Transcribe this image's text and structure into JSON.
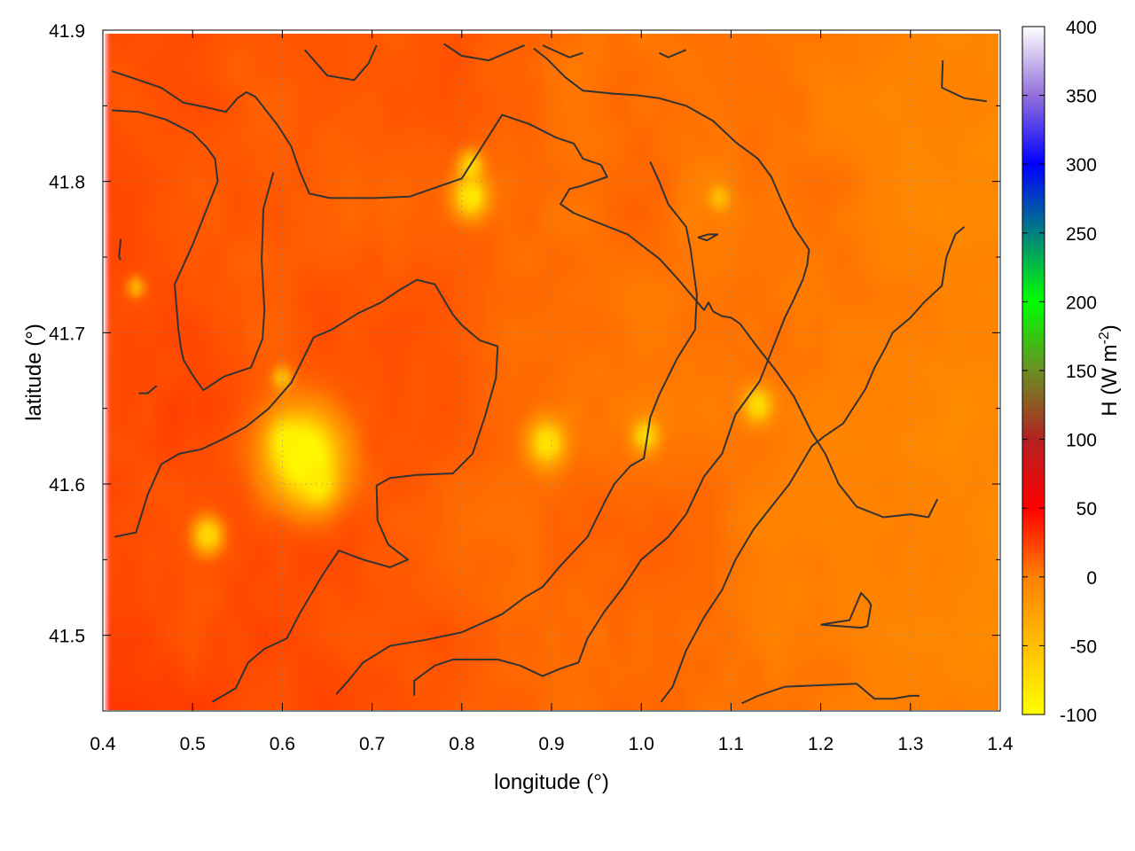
{
  "chart_data": {
    "type": "heatmap",
    "xlabel": "longitude (°)",
    "ylabel": "latitude (°)",
    "colorbar_label": "H (W m",
    "colorbar_label_sup": "-2",
    "colorbar_label_end": ")",
    "xlim": [
      0.4,
      1.4
    ],
    "ylim": [
      41.45,
      41.9
    ],
    "x_ticks": [
      "0.4",
      "0.5",
      "0.6",
      "0.7",
      "0.8",
      "0.9",
      "1.0",
      "1.1",
      "1.2",
      "1.3",
      "1.4"
    ],
    "x_tick_values": [
      0.4,
      0.5,
      0.6,
      0.7,
      0.8,
      0.9,
      1.0,
      1.1,
      1.2,
      1.3,
      1.4
    ],
    "y_ticks": [
      "41.5",
      "41.6",
      "41.7",
      "41.8",
      "41.9"
    ],
    "y_tick_values": [
      41.5,
      41.6,
      41.7,
      41.8,
      41.9
    ],
    "colorbar_range": [
      -100,
      400
    ],
    "colorbar_ticks": [
      "-100",
      "-50",
      "0",
      "50",
      "100",
      "150",
      "200",
      "250",
      "300",
      "350",
      "400"
    ],
    "colorbar_tick_values": [
      -100,
      -50,
      0,
      50,
      100,
      150,
      200,
      250,
      300,
      350,
      400
    ],
    "colormap": [
      {
        "v": -100,
        "c": "#ffff00"
      },
      {
        "v": -50,
        "c": "#ffbf00"
      },
      {
        "v": 0,
        "c": "#ff8000"
      },
      {
        "v": 50,
        "c": "#ff0000"
      },
      {
        "v": 100,
        "c": "#b22222"
      },
      {
        "v": 150,
        "c": "#6b8e23"
      },
      {
        "v": 200,
        "c": "#00ff00"
      },
      {
        "v": 250,
        "c": "#008080"
      },
      {
        "v": 300,
        "c": "#0000ff"
      },
      {
        "v": 350,
        "c": "#9370db"
      },
      {
        "v": 400,
        "c": "#ffffff"
      }
    ],
    "grid": true,
    "field_range_estimate": [
      -100,
      30
    ],
    "background_value_west": 20,
    "background_value_east": -5,
    "hotspots": [
      {
        "lon": 0.625,
        "lat": 41.618,
        "value": -95,
        "r": 0.028
      },
      {
        "lon": 0.605,
        "lat": 41.628,
        "value": -90,
        "r": 0.012
      },
      {
        "lon": 0.64,
        "lat": 41.6,
        "value": -85,
        "r": 0.012
      },
      {
        "lon": 0.81,
        "lat": 41.79,
        "value": -80,
        "r": 0.012
      },
      {
        "lon": 0.81,
        "lat": 41.81,
        "value": -70,
        "r": 0.008
      },
      {
        "lon": 0.895,
        "lat": 41.627,
        "value": -75,
        "r": 0.013
      },
      {
        "lon": 1.005,
        "lat": 41.632,
        "value": -70,
        "r": 0.009
      },
      {
        "lon": 1.13,
        "lat": 41.652,
        "value": -70,
        "r": 0.01
      },
      {
        "lon": 0.517,
        "lat": 41.566,
        "value": -70,
        "r": 0.01
      },
      {
        "lon": 0.6,
        "lat": 41.67,
        "value": -50,
        "r": 0.006
      },
      {
        "lon": 0.437,
        "lat": 41.73,
        "value": -45,
        "r": 0.005
      },
      {
        "lon": 1.087,
        "lat": 41.789,
        "value": -50,
        "r": 0.007
      }
    ],
    "contours": [
      [
        [
          0.41,
          41.873
        ],
        [
          0.435,
          41.868
        ],
        [
          0.465,
          41.862
        ],
        [
          0.49,
          41.852
        ],
        [
          0.515,
          41.849
        ],
        [
          0.537,
          41.846
        ],
        [
          0.55,
          41.855
        ],
        [
          0.56,
          41.859
        ],
        [
          0.57,
          41.856
        ],
        [
          0.595,
          41.837
        ],
        [
          0.61,
          41.823
        ],
        [
          0.62,
          41.806
        ],
        [
          0.63,
          41.792
        ],
        [
          0.653,
          41.789
        ],
        [
          0.703,
          41.789
        ],
        [
          0.742,
          41.79
        ],
        [
          0.8,
          41.802
        ],
        [
          0.845,
          41.844
        ],
        [
          0.875,
          41.838
        ],
        [
          0.905,
          41.829
        ],
        [
          0.925,
          41.825
        ],
        [
          0.935,
          41.815
        ],
        [
          0.955,
          41.811
        ],
        [
          0.962,
          41.803
        ],
        [
          0.933,
          41.797
        ],
        [
          0.92,
          41.795
        ],
        [
          0.91,
          41.785
        ],
        [
          0.925,
          41.779
        ],
        [
          0.955,
          41.772
        ],
        [
          0.985,
          41.765
        ],
        [
          1.0,
          41.758
        ],
        [
          1.02,
          41.749
        ],
        [
          1.04,
          41.736
        ],
        [
          1.06,
          41.722
        ],
        [
          1.07,
          41.715
        ],
        [
          1.075,
          41.72
        ],
        [
          1.08,
          41.714
        ],
        [
          1.09,
          41.711
        ],
        [
          1.1,
          41.71
        ],
        [
          1.11,
          41.706
        ],
        [
          1.13,
          41.69
        ],
        [
          1.15,
          41.675
        ],
        [
          1.17,
          41.658
        ],
        [
          1.19,
          41.634
        ],
        [
          1.205,
          41.62
        ],
        [
          1.22,
          41.6
        ],
        [
          1.24,
          41.585
        ],
        [
          1.27,
          41.578
        ],
        [
          1.3,
          41.58
        ],
        [
          1.32,
          41.578
        ],
        [
          1.33,
          41.59
        ]
      ],
      [
        [
          0.41,
          41.847
        ],
        [
          0.44,
          41.846
        ],
        [
          0.47,
          41.841
        ],
        [
          0.5,
          41.832
        ],
        [
          0.515,
          41.823
        ],
        [
          0.525,
          41.815
        ],
        [
          0.528,
          41.8
        ],
        [
          0.52,
          41.788
        ],
        [
          0.5,
          41.758
        ],
        [
          0.48,
          41.732
        ],
        [
          0.484,
          41.703
        ],
        [
          0.487,
          41.69
        ],
        [
          0.49,
          41.682
        ],
        [
          0.5,
          41.672
        ],
        [
          0.512,
          41.662
        ],
        [
          0.535,
          41.671
        ],
        [
          0.565,
          41.677
        ],
        [
          0.578,
          41.696
        ],
        [
          0.58,
          41.715
        ],
        [
          0.577,
          41.748
        ],
        [
          0.579,
          41.782
        ],
        [
          0.59,
          41.806
        ]
      ],
      [
        [
          0.413,
          41.565
        ],
        [
          0.437,
          41.568
        ],
        [
          0.45,
          41.593
        ],
        [
          0.465,
          41.613
        ],
        [
          0.485,
          41.62
        ],
        [
          0.51,
          41.623
        ],
        [
          0.535,
          41.63
        ],
        [
          0.56,
          41.638
        ],
        [
          0.585,
          41.65
        ],
        [
          0.61,
          41.667
        ],
        [
          0.635,
          41.697
        ],
        [
          0.655,
          41.702
        ],
        [
          0.685,
          41.713
        ],
        [
          0.71,
          41.72
        ],
        [
          0.73,
          41.728
        ],
        [
          0.75,
          41.735
        ],
        [
          0.77,
          41.732
        ],
        [
          0.79,
          41.712
        ],
        [
          0.8,
          41.705
        ],
        [
          0.82,
          41.695
        ],
        [
          0.84,
          41.691
        ],
        [
          0.838,
          41.67
        ],
        [
          0.826,
          41.645
        ],
        [
          0.812,
          41.62
        ],
        [
          0.79,
          41.607
        ],
        [
          0.75,
          41.606
        ],
        [
          0.72,
          41.604
        ],
        [
          0.705,
          41.599
        ],
        [
          0.706,
          41.576
        ],
        [
          0.718,
          41.56
        ],
        [
          0.74,
          41.55
        ],
        [
          0.72,
          41.545
        ],
        [
          0.69,
          41.55
        ],
        [
          0.663,
          41.556
        ],
        [
          0.645,
          41.54
        ],
        [
          0.635,
          41.53
        ],
        [
          0.62,
          41.515
        ],
        [
          0.605,
          41.498
        ],
        [
          0.58,
          41.491
        ],
        [
          0.562,
          41.482
        ],
        [
          0.548,
          41.465
        ],
        [
          0.522,
          41.456
        ]
      ],
      [
        [
          0.66,
          41.461
        ],
        [
          0.675,
          41.471
        ],
        [
          0.69,
          41.482
        ],
        [
          0.72,
          41.493
        ],
        [
          0.76,
          41.497
        ],
        [
          0.8,
          41.502
        ],
        [
          0.845,
          41.514
        ],
        [
          0.87,
          41.525
        ],
        [
          0.89,
          41.532
        ],
        [
          0.91,
          41.546
        ],
        [
          0.94,
          41.565
        ],
        [
          0.96,
          41.589
        ],
        [
          0.97,
          41.6
        ],
        [
          0.988,
          41.612
        ],
        [
          1.003,
          41.617
        ],
        [
          1.01,
          41.644
        ],
        [
          1.02,
          41.659
        ],
        [
          1.04,
          41.683
        ],
        [
          1.06,
          41.702
        ],
        [
          1.062,
          41.725
        ],
        [
          1.055,
          41.755
        ],
        [
          1.05,
          41.77
        ],
        [
          1.03,
          41.785
        ],
        [
          1.02,
          41.8
        ],
        [
          1.01,
          41.813
        ]
      ],
      [
        [
          0.747,
          41.46
        ],
        [
          0.747,
          41.47
        ],
        [
          0.77,
          41.48
        ],
        [
          0.79,
          41.484
        ],
        [
          0.84,
          41.484
        ],
        [
          0.865,
          41.48
        ],
        [
          0.89,
          41.473
        ],
        [
          0.91,
          41.478
        ],
        [
          0.93,
          41.482
        ],
        [
          0.94,
          41.498
        ],
        [
          0.958,
          41.515
        ],
        [
          0.98,
          41.532
        ],
        [
          1.0,
          41.55
        ],
        [
          1.03,
          41.565
        ],
        [
          1.05,
          41.58
        ],
        [
          1.07,
          41.605
        ],
        [
          1.09,
          41.62
        ],
        [
          1.105,
          41.646
        ],
        [
          1.132,
          41.668
        ],
        [
          1.14,
          41.68
        ],
        [
          1.15,
          41.695
        ],
        [
          1.16,
          41.71
        ],
        [
          1.17,
          41.722
        ],
        [
          1.18,
          41.735
        ],
        [
          1.185,
          41.745
        ],
        [
          1.187,
          41.755
        ],
        [
          1.17,
          41.77
        ],
        [
          1.155,
          41.789
        ],
        [
          1.145,
          41.803
        ],
        [
          1.13,
          41.815
        ],
        [
          1.105,
          41.826
        ],
        [
          1.08,
          41.84
        ],
        [
          1.05,
          41.85
        ],
        [
          1.02,
          41.855
        ],
        [
          0.995,
          41.857
        ],
        [
          0.97,
          41.858
        ],
        [
          0.935,
          41.86
        ],
        [
          0.915,
          41.869
        ],
        [
          0.895,
          41.881
        ],
        [
          0.88,
          41.888
        ]
      ],
      [
        [
          1.022,
          41.456
        ],
        [
          1.035,
          41.466
        ],
        [
          1.05,
          41.49
        ],
        [
          1.07,
          41.512
        ],
        [
          1.09,
          41.53
        ],
        [
          1.105,
          41.55
        ],
        [
          1.125,
          41.57
        ],
        [
          1.145,
          41.585
        ],
        [
          1.165,
          41.6
        ],
        [
          1.18,
          41.615
        ],
        [
          1.19,
          41.625
        ],
        [
          1.205,
          41.632
        ],
        [
          1.225,
          41.64
        ],
        [
          1.25,
          41.663
        ],
        [
          1.26,
          41.677
        ],
        [
          1.272,
          41.69
        ],
        [
          1.28,
          41.7
        ],
        [
          1.3,
          41.71
        ],
        [
          1.315,
          41.72
        ],
        [
          1.335,
          41.731
        ],
        [
          1.34,
          41.75
        ],
        [
          1.35,
          41.765
        ],
        [
          1.36,
          41.77
        ]
      ],
      [
        [
          1.112,
          41.455
        ],
        [
          1.13,
          41.46
        ],
        [
          1.16,
          41.466
        ],
        [
          1.2,
          41.467
        ],
        [
          1.24,
          41.468
        ],
        [
          1.26,
          41.458
        ],
        [
          1.28,
          41.458
        ],
        [
          1.3,
          41.46
        ],
        [
          1.31,
          41.46
        ]
      ],
      [
        [
          1.2,
          41.507
        ],
        [
          1.245,
          41.505
        ],
        [
          1.252,
          41.506
        ],
        [
          1.256,
          41.52
        ],
        [
          1.253,
          41.523
        ],
        [
          1.245,
          41.528
        ],
        [
          1.232,
          41.51
        ],
        [
          1.21,
          41.508
        ],
        [
          1.2,
          41.507
        ]
      ],
      [
        [
          0.46,
          41.665
        ],
        [
          0.45,
          41.66
        ],
        [
          0.44,
          41.66
        ]
      ],
      [
        [
          0.42,
          41.762
        ],
        [
          0.418,
          41.75
        ],
        [
          0.42,
          41.748
        ]
      ],
      [
        [
          1.063,
          41.763
        ],
        [
          1.075,
          41.765
        ],
        [
          1.085,
          41.765
        ],
        [
          1.073,
          41.761
        ],
        [
          1.063,
          41.763
        ]
      ],
      [
        [
          0.625,
          41.887
        ],
        [
          0.65,
          41.87
        ],
        [
          0.68,
          41.867
        ],
        [
          0.696,
          41.878
        ],
        [
          0.705,
          41.89
        ]
      ],
      [
        [
          0.78,
          41.891
        ],
        [
          0.8,
          41.883
        ],
        [
          0.83,
          41.88
        ],
        [
          0.87,
          41.89
        ]
      ],
      [
        [
          0.89,
          41.89
        ],
        [
          0.92,
          41.882
        ],
        [
          0.935,
          41.885
        ]
      ],
      [
        [
          1.02,
          41.885
        ],
        [
          1.03,
          41.882
        ],
        [
          1.05,
          41.887
        ]
      ],
      [
        [
          1.336,
          41.88
        ],
        [
          1.335,
          41.862
        ],
        [
          1.36,
          41.855
        ],
        [
          1.385,
          41.853
        ]
      ]
    ]
  }
}
